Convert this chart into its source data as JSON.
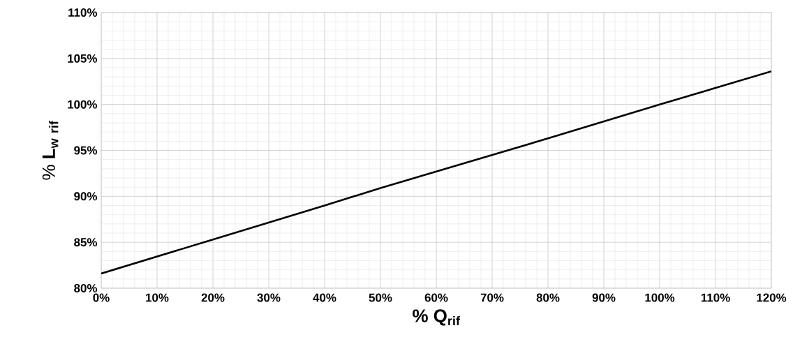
{
  "chart_data": {
    "type": "line",
    "xlabel": "% Q$_{rif}$",
    "ylabel": "\\mathbf{\\%\\ L_{w\\ rif}}",
    "x": [
      0,
      20,
      40,
      50,
      60,
      80,
      100,
      120
    ],
    "series": [
      {
        "color": "#000000",
        "values": [
          81.6,
          85.3,
          89.0,
          90.9,
          92.7,
          96.3,
          100.0,
          103.6
        ]
      }
    ],
    "xlim": [
      0,
      120
    ],
    "ylim": [
      80,
      110
    ],
    "xticks": [
      {
        "value": 0,
        "label": "0%"
      },
      {
        "value": 10,
        "label": "10%"
      },
      {
        "value": 20,
        "label": "20%"
      },
      {
        "value": 30,
        "label": "30%"
      },
      {
        "value": 40,
        "label": "40%"
      },
      {
        "value": 50,
        "label": "50%"
      },
      {
        "value": 60,
        "label": "60%"
      },
      {
        "value": 70,
        "label": "70%"
      },
      {
        "value": 80,
        "label": "80%"
      },
      {
        "value": 90,
        "label": "90%"
      },
      {
        "value": 100,
        "label": "100%"
      },
      {
        "value": 110,
        "label": "110%"
      },
      {
        "value": 120,
        "label": "120%"
      }
    ],
    "yticks": [
      {
        "value": 80,
        "label": "80%"
      },
      {
        "value": 85,
        "label": "85%"
      },
      {
        "value": 90,
        "label": "90%"
      },
      {
        "value": 95,
        "label": "95%"
      },
      {
        "value": 100,
        "label": "100%"
      },
      {
        "value": 105,
        "label": "105%"
      },
      {
        "value": 110,
        "label": "110%"
      }
    ],
    "grid": true,
    "marker": "none",
    "line_style": "solid"
  }
}
